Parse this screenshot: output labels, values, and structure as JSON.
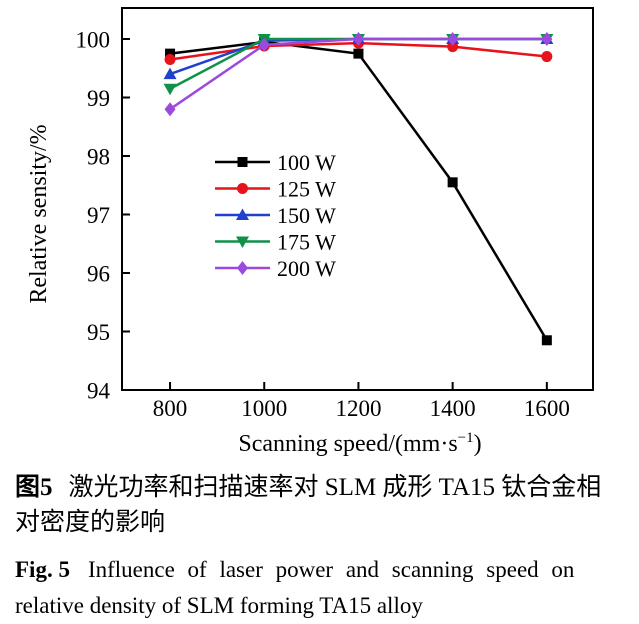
{
  "figure": {
    "caption_cn": {
      "label": "图5",
      "line1": "激光功率和扫描速率对 SLM 成形 TA15 钛合金相",
      "line2": "对密度的影响"
    },
    "caption_en": {
      "label": "Fig. 5",
      "line1": "Influence of laser power and scanning speed on",
      "line2": "relative density of SLM forming TA15 alloy"
    }
  },
  "chart_data": {
    "type": "line",
    "title": "",
    "xlabel": "Scanning speed/(mm·s⁻¹)",
    "xlabel_parts": {
      "main": "Scanning speed/(mm·s",
      "sup": "−1",
      "close": ")"
    },
    "ylabel": "Relative sensity/%",
    "x": [
      800,
      1000,
      1200,
      1400,
      1600
    ],
    "xticks": [
      800,
      1000,
      1200,
      1400,
      1600
    ],
    "yticks": [
      94,
      95,
      96,
      97,
      98,
      99,
      100
    ],
    "xlim": [
      698,
      1698
    ],
    "ylim": [
      94,
      100.53
    ],
    "grid": false,
    "legend_position": "inside-center-left",
    "frame_color": "#000000",
    "series": [
      {
        "name": "100 W",
        "color": "#000000",
        "marker": "square",
        "values": [
          99.75,
          99.95,
          99.75,
          97.55,
          94.85
        ]
      },
      {
        "name": "125 W",
        "color": "#e8121a",
        "marker": "circle",
        "values": [
          99.65,
          99.88,
          99.93,
          99.87,
          99.7
        ]
      },
      {
        "name": "150 W",
        "color": "#2040d0",
        "marker": "triangle-up",
        "values": [
          99.4,
          99.97,
          100.0,
          100.0,
          100.0
        ]
      },
      {
        "name": "175 W",
        "color": "#0f9148",
        "marker": "triangle-down",
        "values": [
          99.15,
          100.0,
          100.0,
          100.0,
          100.0
        ]
      },
      {
        "name": "200 W",
        "color": "#9c4ade",
        "marker": "diamond",
        "values": [
          98.8,
          99.9,
          100.0,
          100.0,
          100.0
        ]
      }
    ]
  }
}
